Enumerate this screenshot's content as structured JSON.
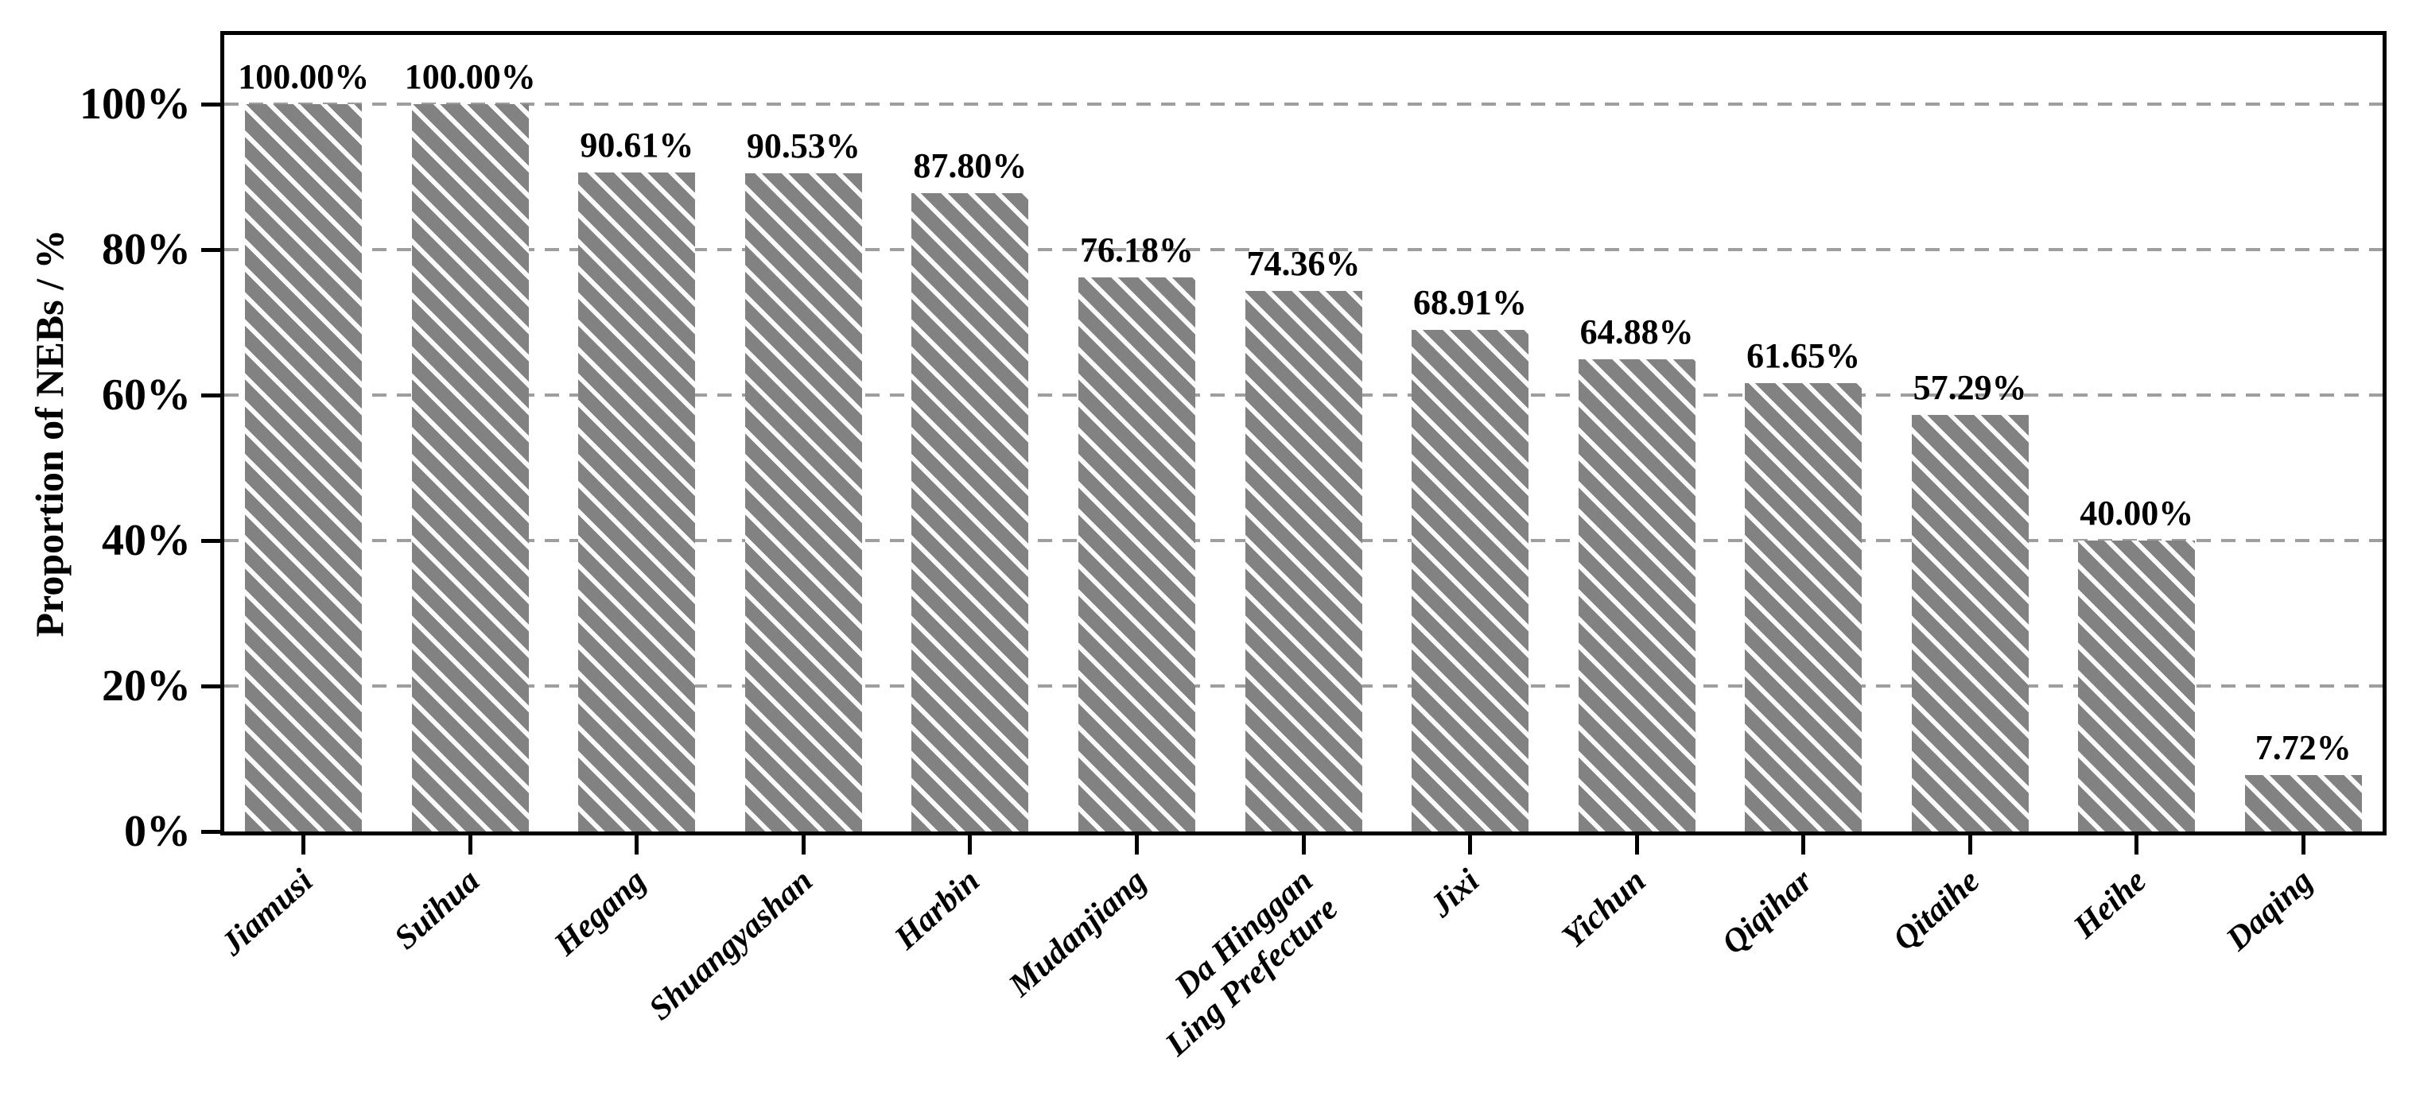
{
  "chart_data": {
    "type": "bar",
    "title": "",
    "ylabel": "Proportion of NEBs / %",
    "xlabel": "",
    "categories": [
      "Jiamusi",
      "Suihua",
      "Hegang",
      "Shuangyashan",
      "Harbin",
      "Mudanjiang",
      "Da Hinggan\nLing Prefecture",
      "Jixi",
      "Yichun",
      "Qiqihar",
      "Qitaihe",
      "Heihe",
      "Daqing"
    ],
    "values": [
      100.0,
      100.0,
      90.61,
      90.53,
      87.8,
      76.18,
      74.36,
      68.91,
      64.88,
      61.65,
      57.29,
      40.0,
      7.72
    ],
    "bar_value_labels": [
      "100.00%",
      "100.00%",
      "90.61%",
      "90.53%",
      "87.80%",
      "76.18%",
      "74.36%",
      "68.91%",
      "64.88%",
      "61.65%",
      "57.29%",
      "40.00%",
      "7.72%"
    ],
    "ytick_values": [
      0,
      20,
      40,
      60,
      80,
      100
    ],
    "ytick_labels": [
      "0%",
      "20%",
      "40%",
      "60%",
      "80%",
      "100%"
    ],
    "ylim": [
      0,
      100
    ],
    "grid": {
      "horizontal_dashed_at": [
        20,
        40,
        60,
        80,
        100
      ],
      "style": "dashed"
    },
    "legend": "none",
    "bar_style": {
      "fill": "#828282",
      "hatch": "white diagonal backslash 45deg",
      "hatch_color": "#fcfcfc"
    },
    "colors": {
      "bar_fill": "#828282",
      "hatch": "#fcfcfc",
      "gridline": "#9e9e9e",
      "axis": "#000000",
      "text": "#000000",
      "background": "#ffffff"
    }
  }
}
